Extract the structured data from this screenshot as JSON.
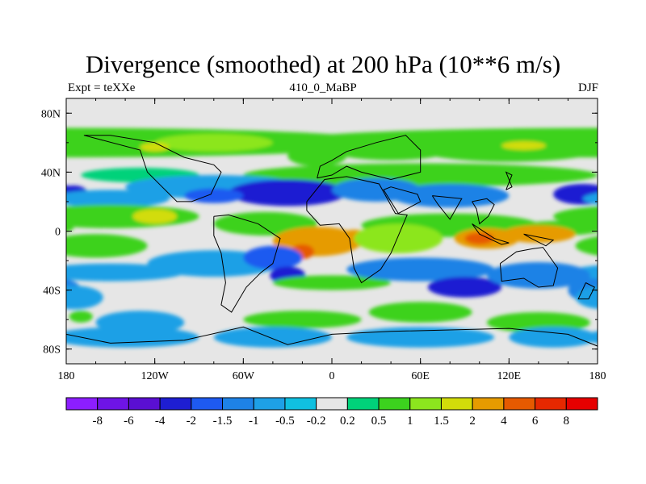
{
  "title": "Divergence (smoothed) at 200 hPa (10**6 m/s)",
  "left_string": "Expt = teXXe",
  "center_string": "410_0_MaBP",
  "right_string": "DJF",
  "chart_data": {
    "type": "heatmap",
    "title": "Divergence (smoothed) at 200 hPa (10**6 m/s)",
    "x_ticks": [
      {
        "value": -180,
        "label": "180"
      },
      {
        "value": -120,
        "label": "120W"
      },
      {
        "value": -60,
        "label": "60W"
      },
      {
        "value": 0,
        "label": "0"
      },
      {
        "value": 60,
        "label": "60E"
      },
      {
        "value": 120,
        "label": "120E"
      },
      {
        "value": 180,
        "label": "180"
      }
    ],
    "y_ticks": [
      {
        "value": 80,
        "label": "80N"
      },
      {
        "value": 40,
        "label": "40N"
      },
      {
        "value": 0,
        "label": "0"
      },
      {
        "value": -40,
        "label": "40S"
      },
      {
        "value": -80,
        "label": "80S"
      }
    ],
    "xlim": [
      -180,
      180
    ],
    "ylim": [
      -90,
      90
    ],
    "levels": [
      "-8",
      "-6",
      "-4",
      "-2",
      "-1.5",
      "-1",
      "-0.5",
      "-0.2",
      "0.2",
      "0.5",
      "1",
      "1.5",
      "2",
      "4",
      "6",
      "8"
    ],
    "colors": [
      "#8c1eff",
      "#6e14e6",
      "#5a0fd2",
      "#1e1ed2",
      "#1e5af0",
      "#1e82e6",
      "#1ea0e6",
      "#10c0e0",
      "#e6e6e6",
      "#00d27a",
      "#3cd21e",
      "#8ce61e",
      "#d2dc0a",
      "#e69b00",
      "#e65a00",
      "#e62800",
      "#e60000"
    ],
    "blobs": [
      {
        "lon": -180,
        "lat": 60,
        "w": 220,
        "h": 10,
        "level": 0.6
      },
      {
        "lon": -80,
        "lat": 60,
        "w": 40,
        "h": 6,
        "level": 1.2
      },
      {
        "lon": -120,
        "lat": 57,
        "w": 10,
        "h": 3,
        "level": 1.5
      },
      {
        "lon": 40,
        "lat": 55,
        "w": 40,
        "h": 7,
        "level": 0.6
      },
      {
        "lon": 120,
        "lat": 55,
        "w": 60,
        "h": 8,
        "level": 0.7
      },
      {
        "lon": 130,
        "lat": 58,
        "w": 15,
        "h": 3,
        "level": 1.6
      },
      {
        "lon": -10,
        "lat": 51,
        "w": 20,
        "h": 7,
        "level": 0.5
      },
      {
        "lon": 60,
        "lat": 38,
        "w": 120,
        "h": 8,
        "level": 0.5
      },
      {
        "lon": -130,
        "lat": 38,
        "w": 40,
        "h": 5,
        "level": 0.4
      },
      {
        "lon": -80,
        "lat": 30,
        "w": 60,
        "h": 8,
        "level": -0.7
      },
      {
        "lon": -30,
        "lat": 26,
        "w": 40,
        "h": 9,
        "level": -2.5
      },
      {
        "lon": -80,
        "lat": 24,
        "w": 20,
        "h": 5,
        "level": -1.8
      },
      {
        "lon": 30,
        "lat": 28,
        "w": 30,
        "h": 8,
        "level": -1.1
      },
      {
        "lon": 80,
        "lat": 24,
        "w": 40,
        "h": 8,
        "level": -1.5
      },
      {
        "lon": 170,
        "lat": 25,
        "w": 20,
        "h": 7,
        "level": -2.5
      },
      {
        "lon": -175,
        "lat": 25,
        "w": 10,
        "h": 6,
        "level": -2.4
      },
      {
        "lon": -150,
        "lat": 22,
        "w": 40,
        "h": 6,
        "level": -0.6
      },
      {
        "lon": -150,
        "lat": 10,
        "w": 60,
        "h": 8,
        "level": 0.7
      },
      {
        "lon": -120,
        "lat": 10,
        "w": 15,
        "h": 5,
        "level": 1.6
      },
      {
        "lon": -45,
        "lat": 5,
        "w": 35,
        "h": 8,
        "level": 0.6
      },
      {
        "lon": 80,
        "lat": 4,
        "w": 60,
        "h": 8,
        "level": 0.6
      },
      {
        "lon": 155,
        "lat": 2,
        "w": 30,
        "h": 5,
        "level": 0.5
      },
      {
        "lon": -10,
        "lat": -7,
        "w": 30,
        "h": 10,
        "level": 2.6
      },
      {
        "lon": -20,
        "lat": -14,
        "w": 8,
        "h": 5,
        "level": 4.5
      },
      {
        "lon": 15,
        "lat": -5,
        "w": 10,
        "h": 6,
        "level": 2.8
      },
      {
        "lon": 105,
        "lat": -5,
        "w": 22,
        "h": 7,
        "level": 3.0
      },
      {
        "lon": 100,
        "lat": -5,
        "w": 10,
        "h": 4,
        "level": 4.5
      },
      {
        "lon": 140,
        "lat": -2,
        "w": 25,
        "h": 6,
        "level": 2.0
      },
      {
        "lon": 45,
        "lat": -5,
        "w": 30,
        "h": 10,
        "level": 1.3
      },
      {
        "lon": -160,
        "lat": -10,
        "w": 35,
        "h": 8,
        "level": 0.7
      },
      {
        "lon": -150,
        "lat": -28,
        "w": 50,
        "h": 6,
        "level": -0.7
      },
      {
        "lon": -80,
        "lat": -22,
        "w": 45,
        "h": 9,
        "level": -0.6
      },
      {
        "lon": -40,
        "lat": -18,
        "w": 20,
        "h": 8,
        "level": -1.8
      },
      {
        "lon": -30,
        "lat": -30,
        "w": 12,
        "h": 6,
        "level": -2.5
      },
      {
        "lon": 0,
        "lat": -35,
        "w": 40,
        "h": 5,
        "level": 0.6
      },
      {
        "lon": 60,
        "lat": -26,
        "w": 50,
        "h": 8,
        "level": -1.2
      },
      {
        "lon": 90,
        "lat": -38,
        "w": 25,
        "h": 7,
        "level": -2.5
      },
      {
        "lon": 140,
        "lat": -30,
        "w": 35,
        "h": 9,
        "level": -1.3
      },
      {
        "lon": 175,
        "lat": -40,
        "w": 15,
        "h": 8,
        "level": -1.2
      },
      {
        "lon": -175,
        "lat": -45,
        "w": 20,
        "h": 8,
        "level": -1.0
      },
      {
        "lon": -130,
        "lat": -62,
        "w": 30,
        "h": 8,
        "level": -0.8
      },
      {
        "lon": -20,
        "lat": -60,
        "w": 40,
        "h": 6,
        "level": 0.5
      },
      {
        "lon": 60,
        "lat": -55,
        "w": 35,
        "h": 7,
        "level": 0.8
      },
      {
        "lon": 140,
        "lat": -62,
        "w": 35,
        "h": 7,
        "level": 0.6
      },
      {
        "lon": -140,
        "lat": -72,
        "w": 50,
        "h": 7,
        "level": -0.9
      },
      {
        "lon": -40,
        "lat": -72,
        "w": 40,
        "h": 7,
        "level": -0.9
      },
      {
        "lon": 60,
        "lat": -72,
        "w": 50,
        "h": 7,
        "level": -0.8
      },
      {
        "lon": 150,
        "lat": -72,
        "w": 30,
        "h": 7,
        "level": -0.9
      },
      {
        "lon": -170,
        "lat": -58,
        "w": 8,
        "h": 4,
        "level": 0.7
      }
    ],
    "coastlines": [
      [
        [
          -168,
          65
        ],
        [
          -150,
          65
        ],
        [
          -120,
          60
        ],
        [
          -100,
          50
        ],
        [
          -80,
          45
        ],
        [
          -75,
          40
        ],
        [
          -82,
          25
        ],
        [
          -95,
          20
        ],
        [
          -105,
          20
        ],
        [
          -115,
          30
        ],
        [
          -125,
          40
        ],
        [
          -130,
          55
        ],
        [
          -168,
          65
        ]
      ],
      [
        [
          -80,
          10
        ],
        [
          -70,
          11
        ],
        [
          -50,
          5
        ],
        [
          -35,
          -5
        ],
        [
          -40,
          -22
        ],
        [
          -48,
          -28
        ],
        [
          -58,
          -38
        ],
        [
          -68,
          -55
        ],
        [
          -75,
          -50
        ],
        [
          -72,
          -35
        ],
        [
          -75,
          -15
        ],
        [
          -80,
          -3
        ],
        [
          -80,
          10
        ]
      ],
      [
        [
          -17,
          20
        ],
        [
          -5,
          35
        ],
        [
          10,
          37
        ],
        [
          32,
          32
        ],
        [
          43,
          12
        ],
        [
          51,
          11
        ],
        [
          40,
          -15
        ],
        [
          33,
          -26
        ],
        [
          20,
          -35
        ],
        [
          15,
          -25
        ],
        [
          12,
          -5
        ],
        [
          5,
          5
        ],
        [
          -8,
          4
        ],
        [
          -17,
          14
        ],
        [
          -17,
          20
        ]
      ],
      [
        [
          -10,
          36
        ],
        [
          -8,
          44
        ],
        [
          0,
          48
        ],
        [
          10,
          54
        ],
        [
          30,
          60
        ],
        [
          50,
          65
        ],
        [
          60,
          55
        ],
        [
          60,
          40
        ],
        [
          40,
          35
        ],
        [
          20,
          40
        ],
        [
          10,
          44
        ],
        [
          0,
          38
        ],
        [
          -10,
          36
        ]
      ],
      [
        [
          40,
          30
        ],
        [
          58,
          25
        ],
        [
          60,
          20
        ],
        [
          45,
          12
        ],
        [
          40,
          20
        ],
        [
          35,
          28
        ],
        [
          40,
          30
        ]
      ],
      [
        [
          68,
          24
        ],
        [
          88,
          22
        ],
        [
          80,
          8
        ],
        [
          72,
          18
        ],
        [
          68,
          24
        ]
      ],
      [
        [
          95,
          20
        ],
        [
          105,
          22
        ],
        [
          110,
          18
        ],
        [
          106,
          10
        ],
        [
          100,
          5
        ],
        [
          98,
          15
        ],
        [
          95,
          20
        ]
      ],
      [
        [
          118,
          28
        ],
        [
          122,
          38
        ],
        [
          118,
          40
        ],
        [
          122,
          30
        ],
        [
          118,
          28
        ]
      ],
      [
        [
          114,
          -22
        ],
        [
          125,
          -14
        ],
        [
          136,
          -12
        ],
        [
          143,
          -11
        ],
        [
          153,
          -25
        ],
        [
          150,
          -37
        ],
        [
          140,
          -38
        ],
        [
          130,
          -32
        ],
        [
          115,
          -34
        ],
        [
          114,
          -22
        ]
      ],
      [
        [
          95,
          5
        ],
        [
          110,
          -5
        ],
        [
          120,
          -8
        ],
        [
          115,
          -9
        ],
        [
          100,
          -2
        ],
        [
          95,
          5
        ]
      ],
      [
        [
          130,
          -2
        ],
        [
          150,
          -6
        ],
        [
          145,
          -10
        ],
        [
          135,
          -5
        ],
        [
          130,
          -2
        ]
      ],
      [
        [
          172,
          -35
        ],
        [
          178,
          -38
        ],
        [
          174,
          -46
        ],
        [
          167,
          -46
        ],
        [
          172,
          -35
        ]
      ],
      [
        [
          -180,
          -70
        ],
        [
          -150,
          -76
        ],
        [
          -100,
          -74
        ],
        [
          -60,
          -65
        ],
        [
          -30,
          -77
        ],
        [
          0,
          -70
        ],
        [
          40,
          -68
        ],
        [
          80,
          -67
        ],
        [
          120,
          -66
        ],
        [
          160,
          -70
        ],
        [
          180,
          -78
        ],
        [
          180,
          -90
        ],
        [
          -180,
          -90
        ],
        [
          -180,
          -70
        ]
      ]
    ]
  }
}
